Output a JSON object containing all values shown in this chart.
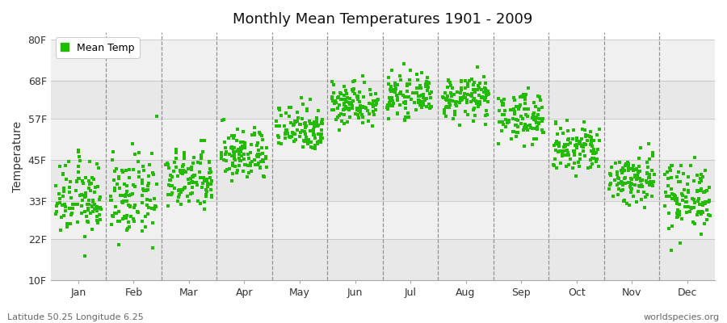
{
  "title": "Monthly Mean Temperatures 1901 - 2009",
  "ylabel": "Temperature",
  "xlabel_months": [
    "Jan",
    "Feb",
    "Mar",
    "Apr",
    "May",
    "Jun",
    "Jul",
    "Aug",
    "Sep",
    "Oct",
    "Nov",
    "Dec"
  ],
  "yticks": [
    10,
    22,
    33,
    45,
    57,
    68,
    80
  ],
  "ytick_labels": [
    "10F",
    "22F",
    "33F",
    "45F",
    "57F",
    "68F",
    "80F"
  ],
  "ylim": [
    10,
    82
  ],
  "xlim": [
    0,
    12
  ],
  "dot_color": "#22bb00",
  "dot_size": 6,
  "legend_label": "Mean Temp",
  "background_color": "#ffffff",
  "plot_bg_color_dark": "#e8e8e8",
  "plot_bg_color_light": "#f4f4f4",
  "footer_left": "Latitude 50.25 Longitude 6.25",
  "footer_right": "worldspecies.org",
  "monthly_means_F": [
    33.5,
    34.0,
    39.0,
    46.5,
    54.5,
    61.5,
    63.5,
    63.0,
    57.5,
    48.0,
    39.5,
    34.5
  ],
  "monthly_stds_F": [
    5.5,
    6.0,
    4.5,
    3.8,
    3.5,
    3.2,
    2.8,
    3.0,
    3.5,
    3.8,
    4.0,
    5.0
  ],
  "n_years": 109,
  "dashed_line_color": "#888888",
  "band_colors": [
    "#e8e8e8",
    "#f0f0f0"
  ]
}
